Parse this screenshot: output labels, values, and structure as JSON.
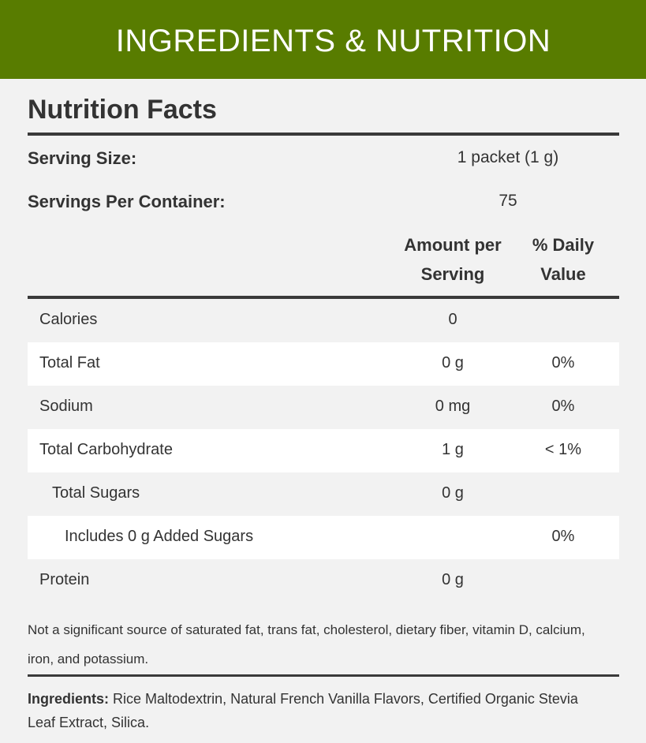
{
  "header": {
    "title": "INGREDIENTS & NUTRITION"
  },
  "nutrition": {
    "title": "Nutrition Facts",
    "serving_size": {
      "label": "Serving Size:",
      "value": "1 packet (1 g)"
    },
    "servings_per_container": {
      "label": "Servings Per Container:",
      "value": "75"
    },
    "columns": {
      "amount": "Amount per Serving",
      "daily_value": "% Daily Value"
    },
    "rows": [
      {
        "label": "Calories",
        "amount": "0"
      },
      {
        "label": "Total Fat",
        "amount": "0 g",
        "daily_value": "0%"
      },
      {
        "label": "Sodium",
        "amount": "0 mg",
        "daily_value": "0%"
      },
      {
        "label": "Total Carbohydrate",
        "amount": "1 g",
        "daily_value": "< 1%"
      },
      {
        "label": "Total Sugars",
        "amount": "0 g",
        "indent": 1
      },
      {
        "label": "Includes 0 g Added Sugars",
        "daily_value": "0%",
        "indent": 2
      },
      {
        "label": "Protein",
        "amount": "0 g"
      }
    ],
    "footnote": "Not a significant source of saturated fat, trans fat, cholesterol, dietary fiber, vitamin D, calcium, iron, and potassium.",
    "ingredients": {
      "label": "Ingredients:",
      "text": "Rice Maltodextrin, Natural French Vanilla Flavors, Certified Organic Stevia Leaf Extract, Silica."
    }
  }
}
